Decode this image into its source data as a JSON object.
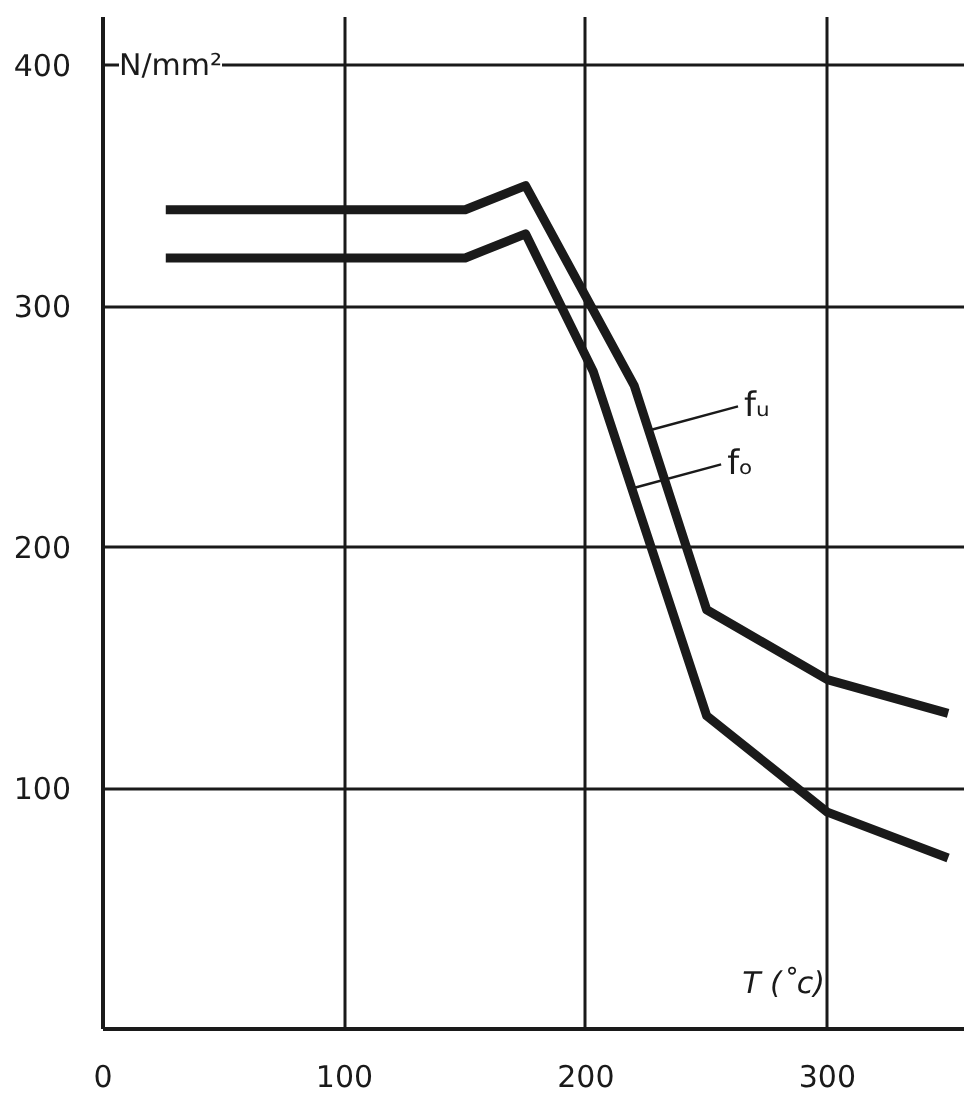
{
  "chart_data": {
    "type": "line",
    "xlabel": "T (˚c)",
    "ylabel": "N/mm²",
    "xlim": [
      0,
      357
    ],
    "ylim": [
      0,
      420
    ],
    "xticks": [
      0,
      100,
      200,
      300
    ],
    "yticks": [
      100,
      200,
      300,
      400
    ],
    "grid": true,
    "legend": "right",
    "marker": "none",
    "line_style": "solid",
    "series": [
      {
        "name": "fᵤ",
        "color": "#1a1a1a",
        "x": [
          26,
          150,
          175,
          220,
          250,
          300,
          350
        ],
        "values": [
          340,
          340,
          350,
          267,
          174,
          145,
          131
        ]
      },
      {
        "name": "fₒ",
        "color": "#1a1a1a",
        "x": [
          26,
          150,
          175,
          203,
          250,
          300,
          350
        ],
        "values": [
          320,
          320,
          330,
          273,
          130,
          90,
          71
        ]
      }
    ]
  }
}
